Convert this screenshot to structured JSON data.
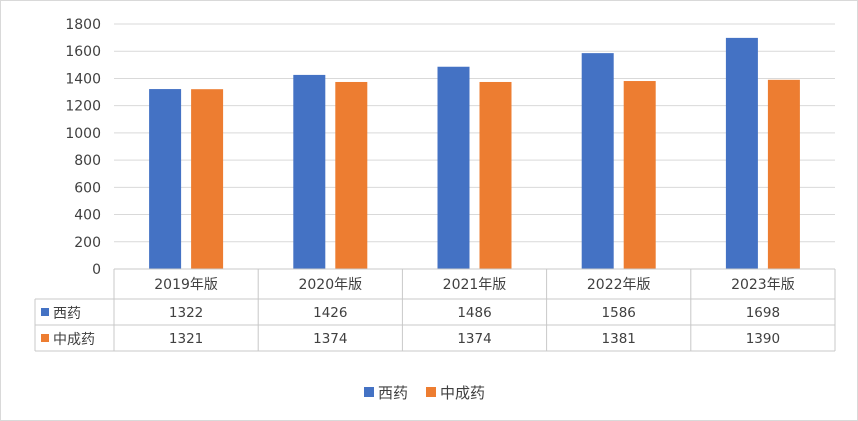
{
  "chart_data": {
    "type": "bar",
    "categories": [
      "2019年版",
      "2020年版",
      "2021年版",
      "2022年版",
      "2023年版"
    ],
    "series": [
      {
        "name": "西药",
        "values": [
          1322,
          1426,
          1486,
          1586,
          1698
        ],
        "color": "#4472c4"
      },
      {
        "name": "中成药",
        "values": [
          1321,
          1374,
          1374,
          1381,
          1390
        ],
        "color": "#ed7d31"
      }
    ],
    "yticks": [
      "0",
      "200",
      "400",
      "600",
      "800",
      "1000",
      "1200",
      "1400",
      "1600",
      "1800"
    ],
    "ylim": [
      0,
      1800
    ],
    "grid": true,
    "data_table": true,
    "legend_position": "bottom",
    "title": "",
    "xlabel": "",
    "ylabel": ""
  }
}
